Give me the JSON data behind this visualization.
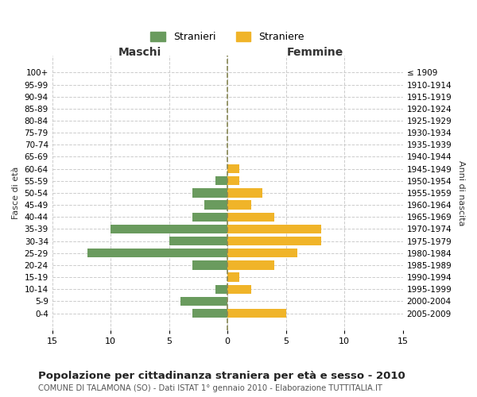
{
  "age_groups": [
    "100+",
    "95-99",
    "90-94",
    "85-89",
    "80-84",
    "75-79",
    "70-74",
    "65-69",
    "60-64",
    "55-59",
    "50-54",
    "45-49",
    "40-44",
    "35-39",
    "30-34",
    "25-29",
    "20-24",
    "15-19",
    "10-14",
    "5-9",
    "0-4"
  ],
  "birth_years": [
    "≤ 1909",
    "1910-1914",
    "1915-1919",
    "1920-1924",
    "1925-1929",
    "1930-1934",
    "1935-1939",
    "1940-1944",
    "1945-1949",
    "1950-1954",
    "1955-1959",
    "1960-1964",
    "1965-1969",
    "1970-1974",
    "1975-1979",
    "1980-1984",
    "1985-1989",
    "1990-1994",
    "1995-1999",
    "2000-2004",
    "2005-2009"
  ],
  "males": [
    0,
    0,
    0,
    0,
    0,
    0,
    0,
    0,
    0,
    1,
    3,
    2,
    3,
    10,
    5,
    12,
    3,
    0,
    1,
    4,
    3
  ],
  "females": [
    0,
    0,
    0,
    0,
    0,
    0,
    0,
    0,
    1,
    1,
    3,
    2,
    4,
    8,
    8,
    6,
    4,
    1,
    2,
    0,
    5
  ],
  "male_color": "#6a9b5e",
  "female_color": "#f0b429",
  "grid_color": "#cccccc",
  "center_line_color": "#888855",
  "title": "Popolazione per cittadinanza straniera per età e sesso - 2010",
  "subtitle": "COMUNE DI TALAMONA (SO) - Dati ISTAT 1° gennaio 2010 - Elaborazione TUTTITALIA.IT",
  "xlabel_left": "Maschi",
  "xlabel_right": "Femmine",
  "ylabel_left": "Fasce di età",
  "ylabel_right": "Anni di nascita",
  "xlim": 15,
  "legend_stranieri": "Stranieri",
  "legend_straniere": "Straniere",
  "bg_color": "#ffffff"
}
